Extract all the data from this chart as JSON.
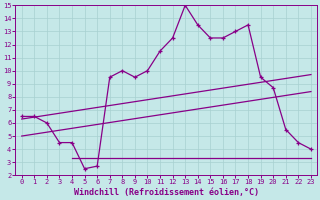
{
  "xlabel": "Windchill (Refroidissement éolien,°C)",
  "bg_color": "#c5e8e8",
  "grid_color": "#a8d0d0",
  "line_color": "#880088",
  "xlim": [
    -0.5,
    23.5
  ],
  "ylim": [
    2,
    15
  ],
  "yticks": [
    2,
    3,
    4,
    5,
    6,
    7,
    8,
    9,
    10,
    11,
    12,
    13,
    14,
    15
  ],
  "xticks": [
    0,
    1,
    2,
    3,
    4,
    5,
    6,
    7,
    8,
    9,
    10,
    11,
    12,
    13,
    14,
    15,
    16,
    17,
    18,
    19,
    20,
    21,
    22,
    23
  ],
  "line1_x": [
    0,
    1,
    2,
    3,
    4,
    5,
    6,
    7,
    8,
    9,
    10,
    11,
    12,
    13,
    14,
    15,
    16,
    17,
    18,
    19,
    20,
    21,
    22,
    23
  ],
  "line1_y": [
    6.5,
    6.5,
    6.0,
    4.5,
    4.5,
    2.5,
    2.7,
    9.5,
    10.0,
    9.5,
    10.0,
    11.5,
    12.5,
    15.0,
    13.5,
    12.5,
    12.5,
    13.0,
    13.5,
    9.5,
    8.7,
    5.5,
    4.5,
    4.0
  ],
  "line2_x": [
    0,
    23
  ],
  "line2_y": [
    6.3,
    9.7
  ],
  "line3_x": [
    0,
    23
  ],
  "line3_y": [
    5.0,
    8.4
  ],
  "line4_x": [
    4,
    23
  ],
  "line4_y": [
    3.3,
    3.3
  ],
  "figsize": [
    3.2,
    2.0
  ],
  "dpi": 100
}
